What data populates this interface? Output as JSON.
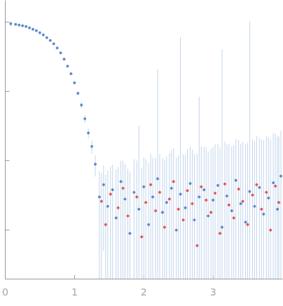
{
  "chart_data": {
    "type": "scatter",
    "log": "y",
    "grid": false,
    "tick_labels": "x",
    "xlim": [
      0,
      4
    ],
    "xticks": [
      0,
      1,
      2,
      3
    ],
    "ylim": [
      0.02,
      200
    ],
    "yticks": [
      0.1,
      1,
      10,
      100
    ],
    "error_color": "#c2d5ec",
    "series": [
      {
        "color": "#3a6fc0",
        "marker": "circle",
        "x": [
          0.08,
          0.15,
          0.2,
          0.25,
          0.3,
          0.35,
          0.4,
          0.45,
          0.5,
          0.55,
          0.6,
          0.65,
          0.7,
          0.75,
          0.8,
          0.85,
          0.9,
          0.95,
          1.0,
          1.05,
          1.1,
          1.15,
          1.2,
          1.25,
          1.3,
          1.36,
          1.42,
          1.48,
          1.55,
          1.6,
          1.67,
          1.73,
          1.8,
          1.86,
          1.93,
          2.0,
          2.07,
          2.13,
          2.2,
          2.27,
          2.33,
          2.4,
          2.47,
          2.53,
          2.6,
          2.67,
          2.73,
          2.8,
          2.87,
          2.93,
          3.0,
          3.07,
          3.13,
          3.2,
          3.27,
          3.33,
          3.4,
          3.47,
          3.53,
          3.6,
          3.67,
          3.73,
          3.8,
          3.87,
          3.93,
          3.98
        ],
        "values": [
          93.3,
          91.2,
          89.1,
          87.1,
          85.1,
          81.3,
          77.6,
          74.1,
          69.2,
          64.6,
          58.9,
          53.7,
          47.9,
          41.7,
          35.5,
          28.8,
          22.9,
          17.8,
          13.2,
          9.3,
          6.3,
          4.0,
          2.5,
          1.6,
          0.89,
          0.3,
          0.45,
          0.22,
          0.38,
          0.15,
          0.5,
          0.28,
          0.09,
          0.35,
          0.2,
          0.42,
          0.12,
          0.3,
          0.55,
          0.18,
          0.25,
          0.4,
          0.1,
          0.33,
          0.21,
          0.47,
          0.14,
          0.3,
          0.38,
          0.16,
          0.27,
          0.44,
          0.11,
          0.31,
          0.19,
          0.52,
          0.24,
          0.13,
          0.36,
          0.22,
          0.41,
          0.17,
          0.29,
          0.48,
          0.2,
          0.6
        ],
        "errors": [
          8,
          2,
          1.5,
          1.2,
          1,
          1,
          0.9,
          0.8,
          0.8,
          0.7,
          0.7,
          0.6,
          0.6,
          0.5,
          0.5,
          0.5,
          0.4,
          0.4,
          0.4,
          0.5,
          0.6,
          0.5,
          0.4,
          0.35,
          0.3,
          0.4,
          0.4,
          0.5,
          0.5,
          0.6,
          0.5,
          0.6,
          0.6,
          0.7,
          3,
          0.7,
          0.8,
          0.8,
          20,
          0.9,
          0.9,
          1,
          1,
          60,
          1,
          1.1,
          1.1,
          8,
          1.2,
          1.2,
          1.3,
          1.3,
          40,
          1.4,
          1.4,
          1.5,
          1.5,
          1.6,
          100,
          1.7,
          1.7,
          1.8,
          1.9,
          2,
          2,
          2.1
        ]
      },
      {
        "color": "#e03030",
        "marker": "circle",
        "x": [
          1.39,
          1.45,
          1.52,
          1.63,
          1.7,
          1.77,
          1.9,
          1.97,
          2.03,
          2.1,
          2.17,
          2.23,
          2.3,
          2.37,
          2.43,
          2.5,
          2.57,
          2.63,
          2.7,
          2.77,
          2.83,
          2.9,
          2.97,
          3.03,
          3.1,
          3.17,
          3.23,
          3.3,
          3.37,
          3.43,
          3.5,
          3.57,
          3.63,
          3.7,
          3.77,
          3.83,
          3.9,
          3.95
        ],
        "values": [
          0.26,
          0.12,
          0.33,
          0.21,
          0.4,
          0.16,
          0.3,
          0.08,
          0.25,
          0.45,
          0.19,
          0.35,
          0.11,
          0.28,
          0.5,
          0.2,
          0.14,
          0.37,
          0.24,
          0.06,
          0.42,
          0.27,
          0.18,
          0.34,
          0.09,
          0.46,
          0.23,
          0.15,
          0.39,
          0.26,
          0.12,
          0.32,
          0.45,
          0.2,
          0.35,
          0.1,
          0.43,
          0.25
        ],
        "errors": [
          0.4,
          0.5,
          0.5,
          0.6,
          0.6,
          0.6,
          0.7,
          0.7,
          0.8,
          0.8,
          0.9,
          0.9,
          0.9,
          1,
          1,
          1,
          1.1,
          1.1,
          1.2,
          1.2,
          1.2,
          1.3,
          1.3,
          1.4,
          1.4,
          1.4,
          1.5,
          1.5,
          1.6,
          1.6,
          1.7,
          1.7,
          1.8,
          1.8,
          1.9,
          1.9,
          2,
          2
        ]
      }
    ]
  }
}
